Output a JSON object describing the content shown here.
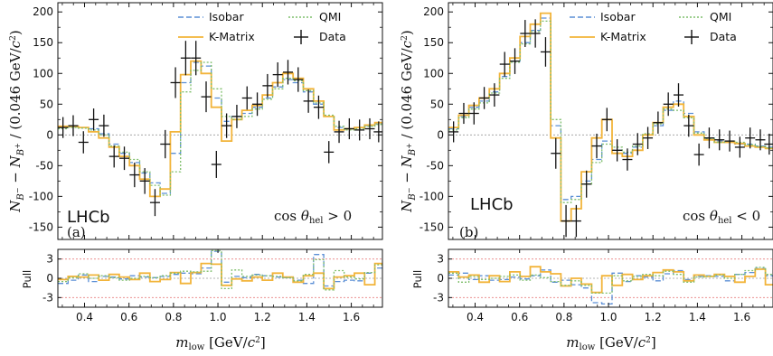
{
  "colors": {
    "isobar": "#5b8fd6",
    "kmatrix": "#f2b43a",
    "qmi": "#7fbf6b",
    "data": "#111111",
    "zero_line": "#9a9a9a",
    "pull_band": "#e88080"
  },
  "x_label": "m_low [GeV/c²]",
  "y_label": "N_{B⁻} − N_{B⁺} / (0.046 GeV/c²)",
  "pull_label": "Pull",
  "legend": {
    "isobar": "Isobar",
    "kmatrix": "K-Matrix",
    "qmi": "QMI",
    "data": "Data"
  },
  "chart_data": [
    {
      "type": "step",
      "panel_label": "(a)",
      "experiment_label": "LHCb",
      "annotation": "cos θ_hel > 0",
      "xlim": [
        0.28,
        1.74
      ],
      "ylim": [
        -170,
        215
      ],
      "xticks": [
        0.4,
        0.6,
        0.8,
        1.0,
        1.2,
        1.4,
        1.6
      ],
      "yticks": [
        -150,
        -100,
        -50,
        0,
        50,
        100,
        150,
        200
      ],
      "pull_ylim": [
        -4.5,
        4.5
      ],
      "pull_yticks": [
        -3,
        0,
        3
      ],
      "bin_edges": [
        0.28,
        0.326,
        0.372,
        0.418,
        0.464,
        0.51,
        0.556,
        0.602,
        0.648,
        0.694,
        0.74,
        0.786,
        0.832,
        0.878,
        0.924,
        0.97,
        1.016,
        1.062,
        1.108,
        1.154,
        1.2,
        1.246,
        1.292,
        1.338,
        1.384,
        1.43,
        1.476,
        1.522,
        1.568,
        1.614,
        1.66,
        1.706,
        1.74
      ],
      "series": [
        {
          "name": "Isobar",
          "values": [
            12,
            13,
            12,
            10,
            2,
            -15,
            -30,
            -45,
            -62,
            -78,
            -95,
            -30,
            85,
            118,
            112,
            60,
            22,
            30,
            35,
            45,
            60,
            78,
            90,
            85,
            70,
            50,
            30,
            12,
            10,
            12,
            15,
            18
          ],
          "pulls": [
            -0.8,
            -0.3,
            0.5,
            -0.5,
            0.3,
            0.2,
            -0.1,
            0.4,
            0.2,
            0.1,
            0.3,
            0.6,
            0.8,
            0.7,
            1.6,
            4.2,
            -0.6,
            0.3,
            0.1,
            0.6,
            0.4,
            0.2,
            0.1,
            -0.3,
            -0.8,
            3.7,
            -1.2,
            -0.5,
            -0.3,
            -0.4,
            0.8,
            1.6
          ]
        },
        {
          "name": "K-Matrix",
          "values": [
            14,
            14,
            12,
            5,
            -5,
            -20,
            -35,
            -50,
            -72,
            -100,
            -88,
            5,
            98,
            120,
            100,
            45,
            -10,
            25,
            40,
            48,
            65,
            85,
            100,
            92,
            75,
            55,
            30,
            8,
            10,
            12,
            16,
            20
          ],
          "pulls": [
            -0.2,
            0.3,
            0.2,
            0.5,
            -0.3,
            0.6,
            0.2,
            -0.2,
            0.8,
            -0.5,
            -0.2,
            0.9,
            -0.8,
            0.9,
            2.3,
            2.2,
            -1.1,
            -0.1,
            -0.4,
            0.2,
            -0.3,
            0.8,
            0.2,
            -0.6,
            0.4,
            0.8,
            -1.6,
            0.2,
            0.4,
            0.8,
            -1.0,
            2.3
          ]
        },
        {
          "name": "QMI",
          "values": [
            10,
            12,
            11,
            8,
            0,
            -18,
            -28,
            -40,
            -60,
            -82,
            -98,
            -60,
            70,
            105,
            118,
            75,
            30,
            25,
            30,
            42,
            58,
            75,
            92,
            88,
            72,
            52,
            32,
            14,
            8,
            10,
            14,
            17
          ],
          "pulls": [
            -0.5,
            0.1,
            0.7,
            0.0,
            0.4,
            0.1,
            -0.3,
            0.0,
            0.3,
            0.1,
            0.4,
            0.8,
            1.1,
            1.0,
            1.1,
            4.3,
            -1.6,
            1.3,
            0.3,
            0.5,
            0.4,
            0.3,
            0.1,
            -0.4,
            0.6,
            2.9,
            -1.8,
            1.2,
            0.2,
            -0.1,
            0.9,
            2.1
          ]
        }
      ],
      "data": {
        "x": [
          0.303,
          0.349,
          0.395,
          0.441,
          0.487,
          0.533,
          0.579,
          0.625,
          0.671,
          0.717,
          0.763,
          0.809,
          0.855,
          0.901,
          0.947,
          0.993,
          1.039,
          1.085,
          1.131,
          1.177,
          1.223,
          1.269,
          1.315,
          1.361,
          1.407,
          1.453,
          1.499,
          1.545,
          1.591,
          1.637,
          1.683,
          1.723
        ],
        "y": [
          12,
          15,
          -12,
          25,
          15,
          -35,
          -38,
          -65,
          -75,
          -110,
          -15,
          85,
          125,
          125,
          62,
          -48,
          15,
          30,
          60,
          50,
          80,
          98,
          102,
          90,
          55,
          45,
          -28,
          5,
          10,
          8,
          10,
          5
        ],
        "err": [
          17,
          17,
          18,
          18,
          18,
          18,
          19,
          20,
          21,
          22,
          23,
          25,
          28,
          28,
          25,
          22,
          20,
          19,
          19,
          19,
          19,
          20,
          20,
          20,
          19,
          19,
          18,
          18,
          17,
          17,
          17,
          17
        ]
      }
    },
    {
      "type": "step",
      "panel_label": "(b)",
      "experiment_label": "LHCb",
      "annotation": "cos θ_hel < 0",
      "xlim": [
        0.28,
        1.74
      ],
      "ylim": [
        -170,
        215
      ],
      "xticks": [
        0.4,
        0.6,
        0.8,
        1.0,
        1.2,
        1.4,
        1.6
      ],
      "yticks": [
        -150,
        -100,
        -50,
        0,
        50,
        100,
        150,
        200
      ],
      "pull_ylim": [
        -4.5,
        4.5
      ],
      "pull_yticks": [
        -3,
        0,
        3
      ],
      "bin_edges": [
        0.28,
        0.326,
        0.372,
        0.418,
        0.464,
        0.51,
        0.556,
        0.602,
        0.648,
        0.694,
        0.74,
        0.786,
        0.832,
        0.878,
        0.924,
        0.97,
        1.016,
        1.062,
        1.108,
        1.154,
        1.2,
        1.246,
        1.292,
        1.338,
        1.384,
        1.43,
        1.476,
        1.522,
        1.568,
        1.614,
        1.66,
        1.706,
        1.74
      ],
      "series": [
        {
          "name": "Isobar",
          "values": [
            10,
            30,
            45,
            55,
            70,
            95,
            120,
            150,
            170,
            190,
            15,
            -105,
            -100,
            -75,
            -40,
            -10,
            -25,
            -30,
            -20,
            0,
            15,
            40,
            55,
            35,
            5,
            -5,
            -10,
            -12,
            -15,
            -15,
            -18,
            -20
          ],
          "pulls": [
            0.5,
            0.8,
            -0.2,
            0.4,
            -0.3,
            -0.2,
            0.2,
            -0.1,
            0.4,
            1.3,
            -0.6,
            -0.3,
            -1.0,
            -1.5,
            -3.8,
            -4.0,
            0.8,
            -0.5,
            0.4,
            0.2,
            -0.4,
            0.7,
            1.2,
            -0.2,
            0.3,
            0.4,
            0.3,
            -0.4,
            0.6,
            0.9,
            1.5,
            0.4
          ]
        },
        {
          "name": "K-Matrix",
          "values": [
            12,
            32,
            48,
            60,
            75,
            100,
            125,
            160,
            180,
            198,
            -5,
            -140,
            -120,
            -60,
            -5,
            25,
            -30,
            -35,
            -25,
            0,
            20,
            45,
            50,
            30,
            0,
            -8,
            -12,
            -12,
            -14,
            -18,
            -20,
            -22
          ],
          "pulls": [
            1.0,
            0.2,
            0.5,
            -0.6,
            0.4,
            -0.5,
            1.0,
            0.3,
            1.8,
            1.0,
            0.7,
            -1.2,
            0.0,
            -0.9,
            -2.2,
            0.4,
            -1.1,
            0.6,
            -0.2,
            0.4,
            0.9,
            1.3,
            1.0,
            -0.4,
            0.5,
            0.3,
            0.6,
            0.3,
            -0.6,
            0.3,
            1.4,
            -1.0
          ]
        },
        {
          "name": "QMI",
          "values": [
            8,
            28,
            42,
            52,
            68,
            92,
            118,
            148,
            168,
            185,
            25,
            -110,
            -105,
            -80,
            -45,
            -15,
            -20,
            -28,
            -18,
            2,
            18,
            42,
            40,
            28,
            3,
            -6,
            -12,
            -10,
            -12,
            -16,
            -19,
            -21
          ],
          "pulls": [
            0.8,
            -0.6,
            0.3,
            -0.2,
            0.0,
            0.3,
            0.5,
            -0.3,
            0.5,
            0.1,
            -0.5,
            -1.1,
            -0.4,
            -1.1,
            -2.3,
            -2.3,
            0.4,
            -0.4,
            0.3,
            0.6,
            0.4,
            1.1,
            0.6,
            -0.6,
            0.2,
            0.3,
            0.5,
            0.0,
            0.6,
            1.2,
            1.7,
            0.6
          ]
        }
      ],
      "data": {
        "x": [
          0.303,
          0.349,
          0.395,
          0.441,
          0.487,
          0.533,
          0.579,
          0.625,
          0.671,
          0.717,
          0.763,
          0.809,
          0.855,
          0.901,
          0.947,
          0.993,
          1.039,
          1.085,
          1.131,
          1.177,
          1.223,
          1.269,
          1.315,
          1.361,
          1.407,
          1.453,
          1.499,
          1.545,
          1.591,
          1.637,
          1.683,
          1.723
        ],
        "y": [
          5,
          35,
          35,
          60,
          65,
          115,
          120,
          165,
          165,
          135,
          -30,
          -140,
          -140,
          -80,
          -18,
          25,
          -25,
          -40,
          -15,
          -5,
          20,
          50,
          65,
          15,
          -32,
          -5,
          -8,
          -10,
          -20,
          -5,
          -8,
          -15
        ],
        "err": [
          17,
          17,
          18,
          18,
          19,
          20,
          21,
          22,
          23,
          24,
          25,
          26,
          26,
          22,
          20,
          19,
          18,
          18,
          18,
          18,
          18,
          19,
          19,
          18,
          18,
          17,
          17,
          17,
          17,
          17,
          17,
          17
        ]
      }
    }
  ]
}
